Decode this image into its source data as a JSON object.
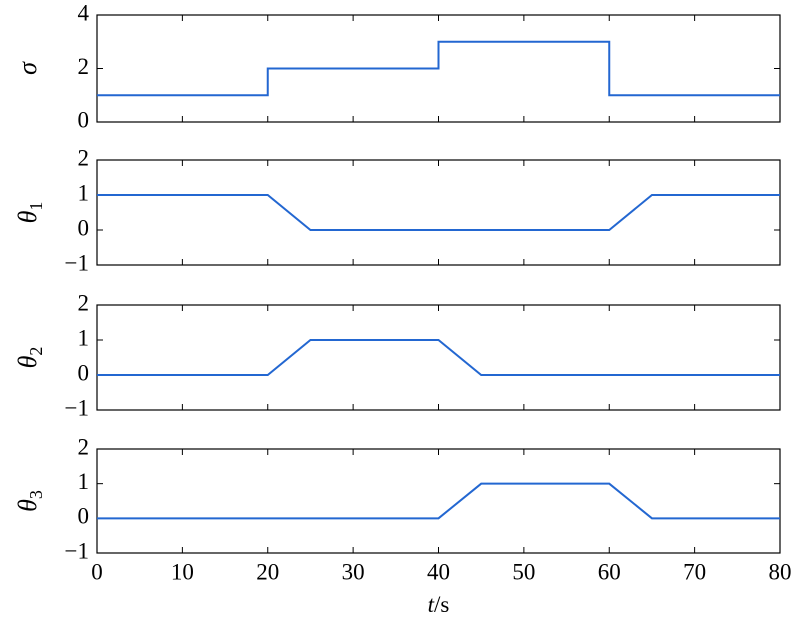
{
  "chart_data": [
    {
      "type": "line",
      "ylabel": "σ",
      "xlim": [
        0,
        80
      ],
      "xticks": [
        0,
        10,
        20,
        30,
        40,
        50,
        60,
        70,
        80
      ],
      "ylim": [
        0,
        4
      ],
      "yticks": [
        0,
        2,
        4
      ],
      "x": [
        0,
        20,
        20,
        40,
        40,
        60,
        60,
        80
      ],
      "series": [
        {
          "color": "#2367d1",
          "values": [
            1,
            1,
            2,
            2,
            3,
            3,
            1,
            1
          ]
        }
      ]
    },
    {
      "type": "line",
      "ylabel": "θ1",
      "xlim": [
        0,
        80
      ],
      "xticks": [
        0,
        10,
        20,
        30,
        40,
        50,
        60,
        70,
        80
      ],
      "ylim": [
        -1,
        2
      ],
      "yticks": [
        {
          "value": -1,
          "label": "−1"
        },
        0,
        1,
        2
      ],
      "x": [
        0,
        20,
        25,
        60,
        65,
        80
      ],
      "series": [
        {
          "color": "#2367d1",
          "values": [
            1,
            1,
            0,
            0,
            1,
            1
          ]
        }
      ]
    },
    {
      "type": "line",
      "ylabel": "θ2",
      "xlim": [
        0,
        80
      ],
      "xticks": [
        0,
        10,
        20,
        30,
        40,
        50,
        60,
        70,
        80
      ],
      "ylim": [
        -1,
        2
      ],
      "yticks": [
        {
          "value": -1,
          "label": "−1"
        },
        0,
        1,
        2
      ],
      "x": [
        0,
        20,
        25,
        40,
        45,
        80
      ],
      "series": [
        {
          "color": "#2367d1",
          "values": [
            0,
            0,
            1,
            1,
            0,
            0
          ]
        }
      ]
    },
    {
      "type": "line",
      "ylabel": "θ3",
      "xlabel": "t/s",
      "xlim": [
        0,
        80
      ],
      "xticks": [
        0,
        10,
        20,
        30,
        40,
        50,
        60,
        70,
        80
      ],
      "ylim": [
        -1,
        2
      ],
      "yticks": [
        {
          "value": -1,
          "label": "−1"
        },
        0,
        1,
        2
      ],
      "x": [
        0,
        40,
        45,
        60,
        65,
        80
      ],
      "series": [
        {
          "color": "#2367d1",
          "values": [
            0,
            0,
            1,
            1,
            0,
            0
          ]
        }
      ]
    }
  ]
}
